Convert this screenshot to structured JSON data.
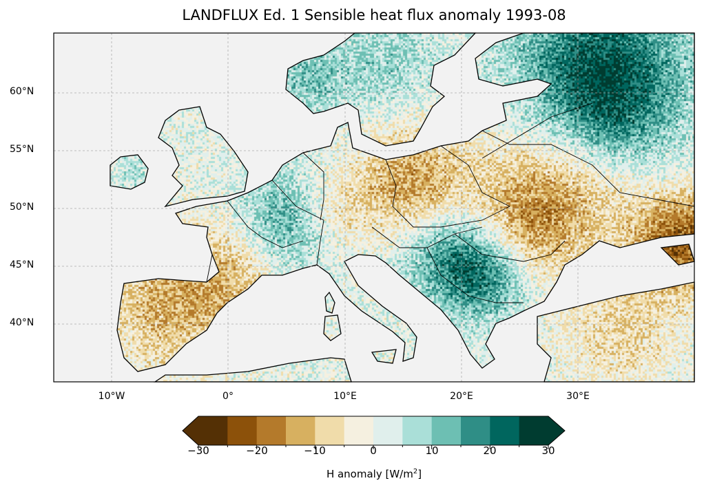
{
  "title": "LANDFLUX Ed. 1 Sensible heat flux anomaly 1993-08",
  "map": {
    "ocean_color": "#f2f2f2",
    "lat_labels": [
      "60°N",
      "55°N",
      "50°N",
      "45°N",
      "40°N"
    ],
    "lon_labels": [
      "10°W",
      "0°",
      "10°E",
      "20°E",
      "30°E"
    ]
  },
  "colorbar": {
    "min": -30,
    "max": 30,
    "step": 5,
    "extend": "both",
    "ticks": [
      "−30",
      "−20",
      "−10",
      "0",
      "10",
      "20",
      "30"
    ],
    "label_prefix": "H anomaly [W/m",
    "label_sup": "2",
    "label_suffix": "]",
    "colors": [
      "#543005",
      "#8c510a",
      "#b47a2b",
      "#d7b060",
      "#f0dcaa",
      "#f5f0e0",
      "#e0efec",
      "#aadfd8",
      "#6dbfb3",
      "#2f8e86",
      "#00665e",
      "#003c30"
    ]
  }
}
